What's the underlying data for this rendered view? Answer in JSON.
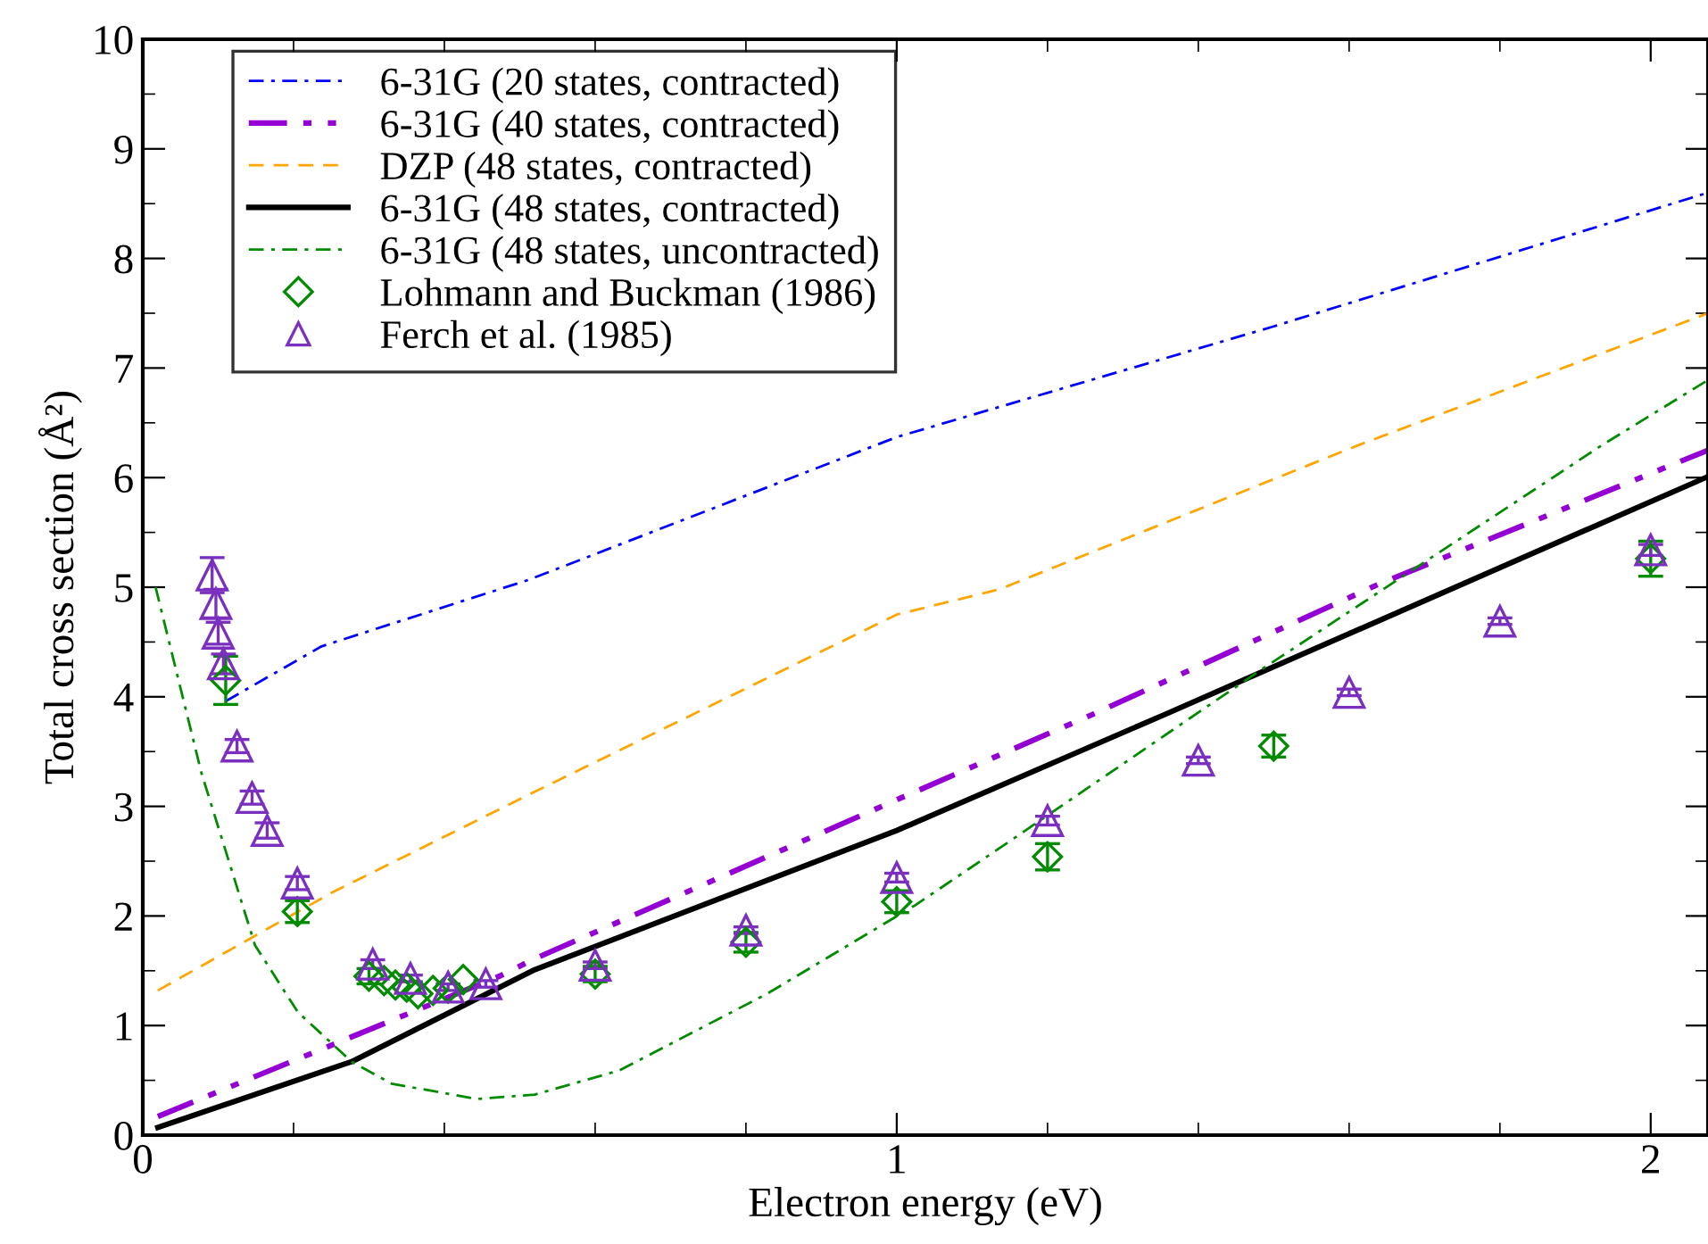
{
  "chart_data": {
    "type": "line",
    "xlabel": "Electron energy (eV)",
    "ylabel": "Total cross section (Å²)",
    "xlim": [
      0,
      2.076
    ],
    "ylim": [
      0,
      10
    ],
    "xticks": [
      0,
      1,
      2
    ],
    "yticks": [
      0,
      1,
      2,
      3,
      4,
      5,
      6,
      7,
      8,
      9,
      10
    ],
    "grid": false,
    "legend": "top left",
    "series": [
      {
        "name": "6-31G (20 states, contracted)",
        "color": "#0000ff",
        "line_style": "dashdot",
        "marker": "none",
        "x": [
          0.11,
          0.237,
          0.513,
          1.0,
          1.5,
          2.076
        ],
        "values": [
          3.96,
          4.46,
          5.07,
          6.37,
          7.38,
          8.6
        ]
      },
      {
        "name": "6-31G (40 states, contracted)",
        "color": "#9400d3",
        "line_style": "dashdotdot",
        "marker": "none",
        "x": [
          0.02,
          0.473,
          0.52,
          1.0,
          1.26,
          1.64,
          2.076
        ],
        "values": [
          0.17,
          1.45,
          1.61,
          3.06,
          3.84,
          5.03,
          6.25
        ]
      },
      {
        "name": "DZP (48 states, contracted)",
        "color": "#ffa500",
        "line_style": "dashed",
        "marker": "none",
        "x": [
          0.02,
          0.25,
          0.513,
          1.0,
          1.136,
          1.61,
          2.076
        ],
        "values": [
          1.32,
          2.21,
          3.11,
          4.75,
          4.98,
          6.29,
          7.5
        ]
      },
      {
        "name": "6-31G (48 states, contracted)",
        "color": "#000000",
        "line_style": "solid",
        "marker": "none",
        "x": [
          0.02,
          0.277,
          0.52,
          1.0,
          1.356,
          2.076
        ],
        "values": [
          0.07,
          0.67,
          1.51,
          2.78,
          3.84,
          6.01
        ]
      },
      {
        "name": "6-31G (48 states, uncontracted)",
        "color": "#008b00",
        "line_style": "dashdot",
        "marker": "none",
        "x": [
          0.017,
          0.078,
          0.149,
          0.206,
          0.277,
          0.33,
          0.443,
          0.52,
          0.632,
          0.828,
          1.025,
          1.143,
          1.373,
          1.484,
          1.934,
          2.076
        ],
        "values": [
          5.0,
          3.3,
          1.73,
          1.12,
          0.67,
          0.47,
          0.33,
          0.37,
          0.59,
          1.29,
          2.1,
          2.65,
          3.73,
          4.25,
          6.29,
          6.89
        ]
      },
      {
        "name": "Lohmann and Buckman (1986)",
        "type": "scatter",
        "color": "#008b00",
        "marker": "diamond",
        "x": [
          0.11,
          0.205,
          0.3,
          0.32,
          0.335,
          0.35,
          0.365,
          0.385,
          0.405,
          0.425,
          0.6,
          0.8,
          1.0,
          1.2,
          1.5,
          2.0
        ],
        "values": [
          4.15,
          2.04,
          1.45,
          1.41,
          1.37,
          1.35,
          1.29,
          1.32,
          1.34,
          1.42,
          1.47,
          1.76,
          2.13,
          2.54,
          3.55,
          5.26
        ],
        "errors": [
          0.22,
          0.1,
          0.07,
          null,
          null,
          null,
          null,
          null,
          null,
          null,
          0.07,
          0.09,
          0.1,
          0.12,
          0.1,
          0.16
        ]
      },
      {
        "name": "Ferch et al. (1985)",
        "type": "scatter",
        "color": "#7b2fbe",
        "marker": "triangle",
        "x": [
          0.092,
          0.097,
          0.1,
          0.107,
          0.125,
          0.145,
          0.165,
          0.205,
          0.305,
          0.355,
          0.405,
          0.455,
          0.6,
          0.8,
          1.0,
          1.2,
          1.4,
          1.6,
          1.8,
          2.0
        ],
        "values": [
          5.11,
          4.85,
          4.58,
          4.3,
          3.55,
          3.08,
          2.78,
          2.3,
          1.56,
          1.43,
          1.35,
          1.38,
          1.55,
          1.87,
          2.35,
          2.87,
          3.42,
          4.04,
          4.69,
          5.34
        ],
        "errors": [
          0.16,
          0.13,
          0.1,
          0.09,
          0.06,
          0.06,
          0.07,
          0.06,
          0.04,
          0.03,
          0.03,
          0.03,
          0.03,
          0.03,
          0.04,
          0.04,
          0.03,
          0.03,
          0.03,
          0.05
        ]
      }
    ]
  }
}
